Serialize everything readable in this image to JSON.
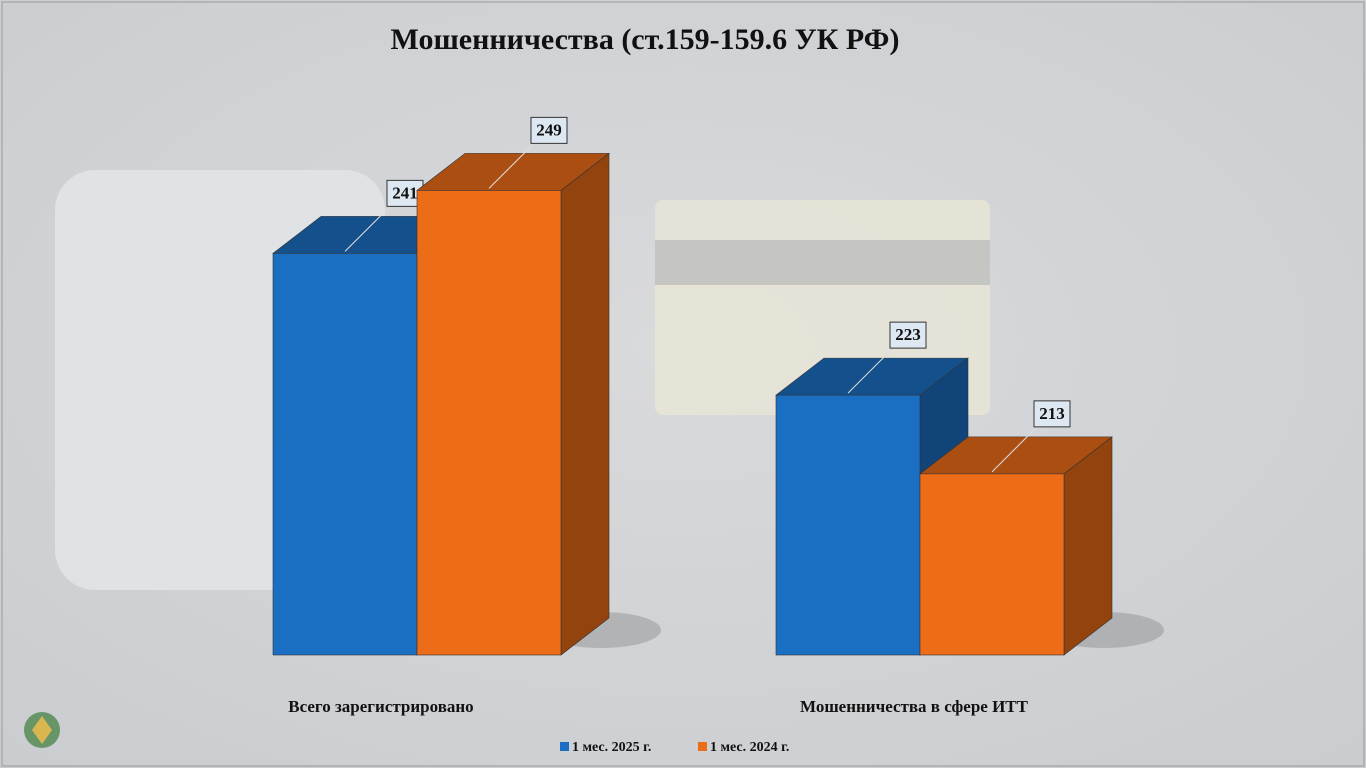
{
  "chart_data": {
    "type": "bar3d",
    "title": "Мошенничества (ст.159-159.6 УК РФ)",
    "categories": [
      "Всего зарегистрировано",
      "Мошенничества в сфере ИТТ"
    ],
    "series": [
      {
        "name": "1 мес. 2025 г.",
        "color": "#1b6fc3",
        "values": [
          241,
          223
        ]
      },
      {
        "name": "1 мес. 2024 г.",
        "color": "#ec6c17",
        "values": [
          249,
          213
        ]
      }
    ],
    "ylim": [
      190,
      250
    ]
  }
}
